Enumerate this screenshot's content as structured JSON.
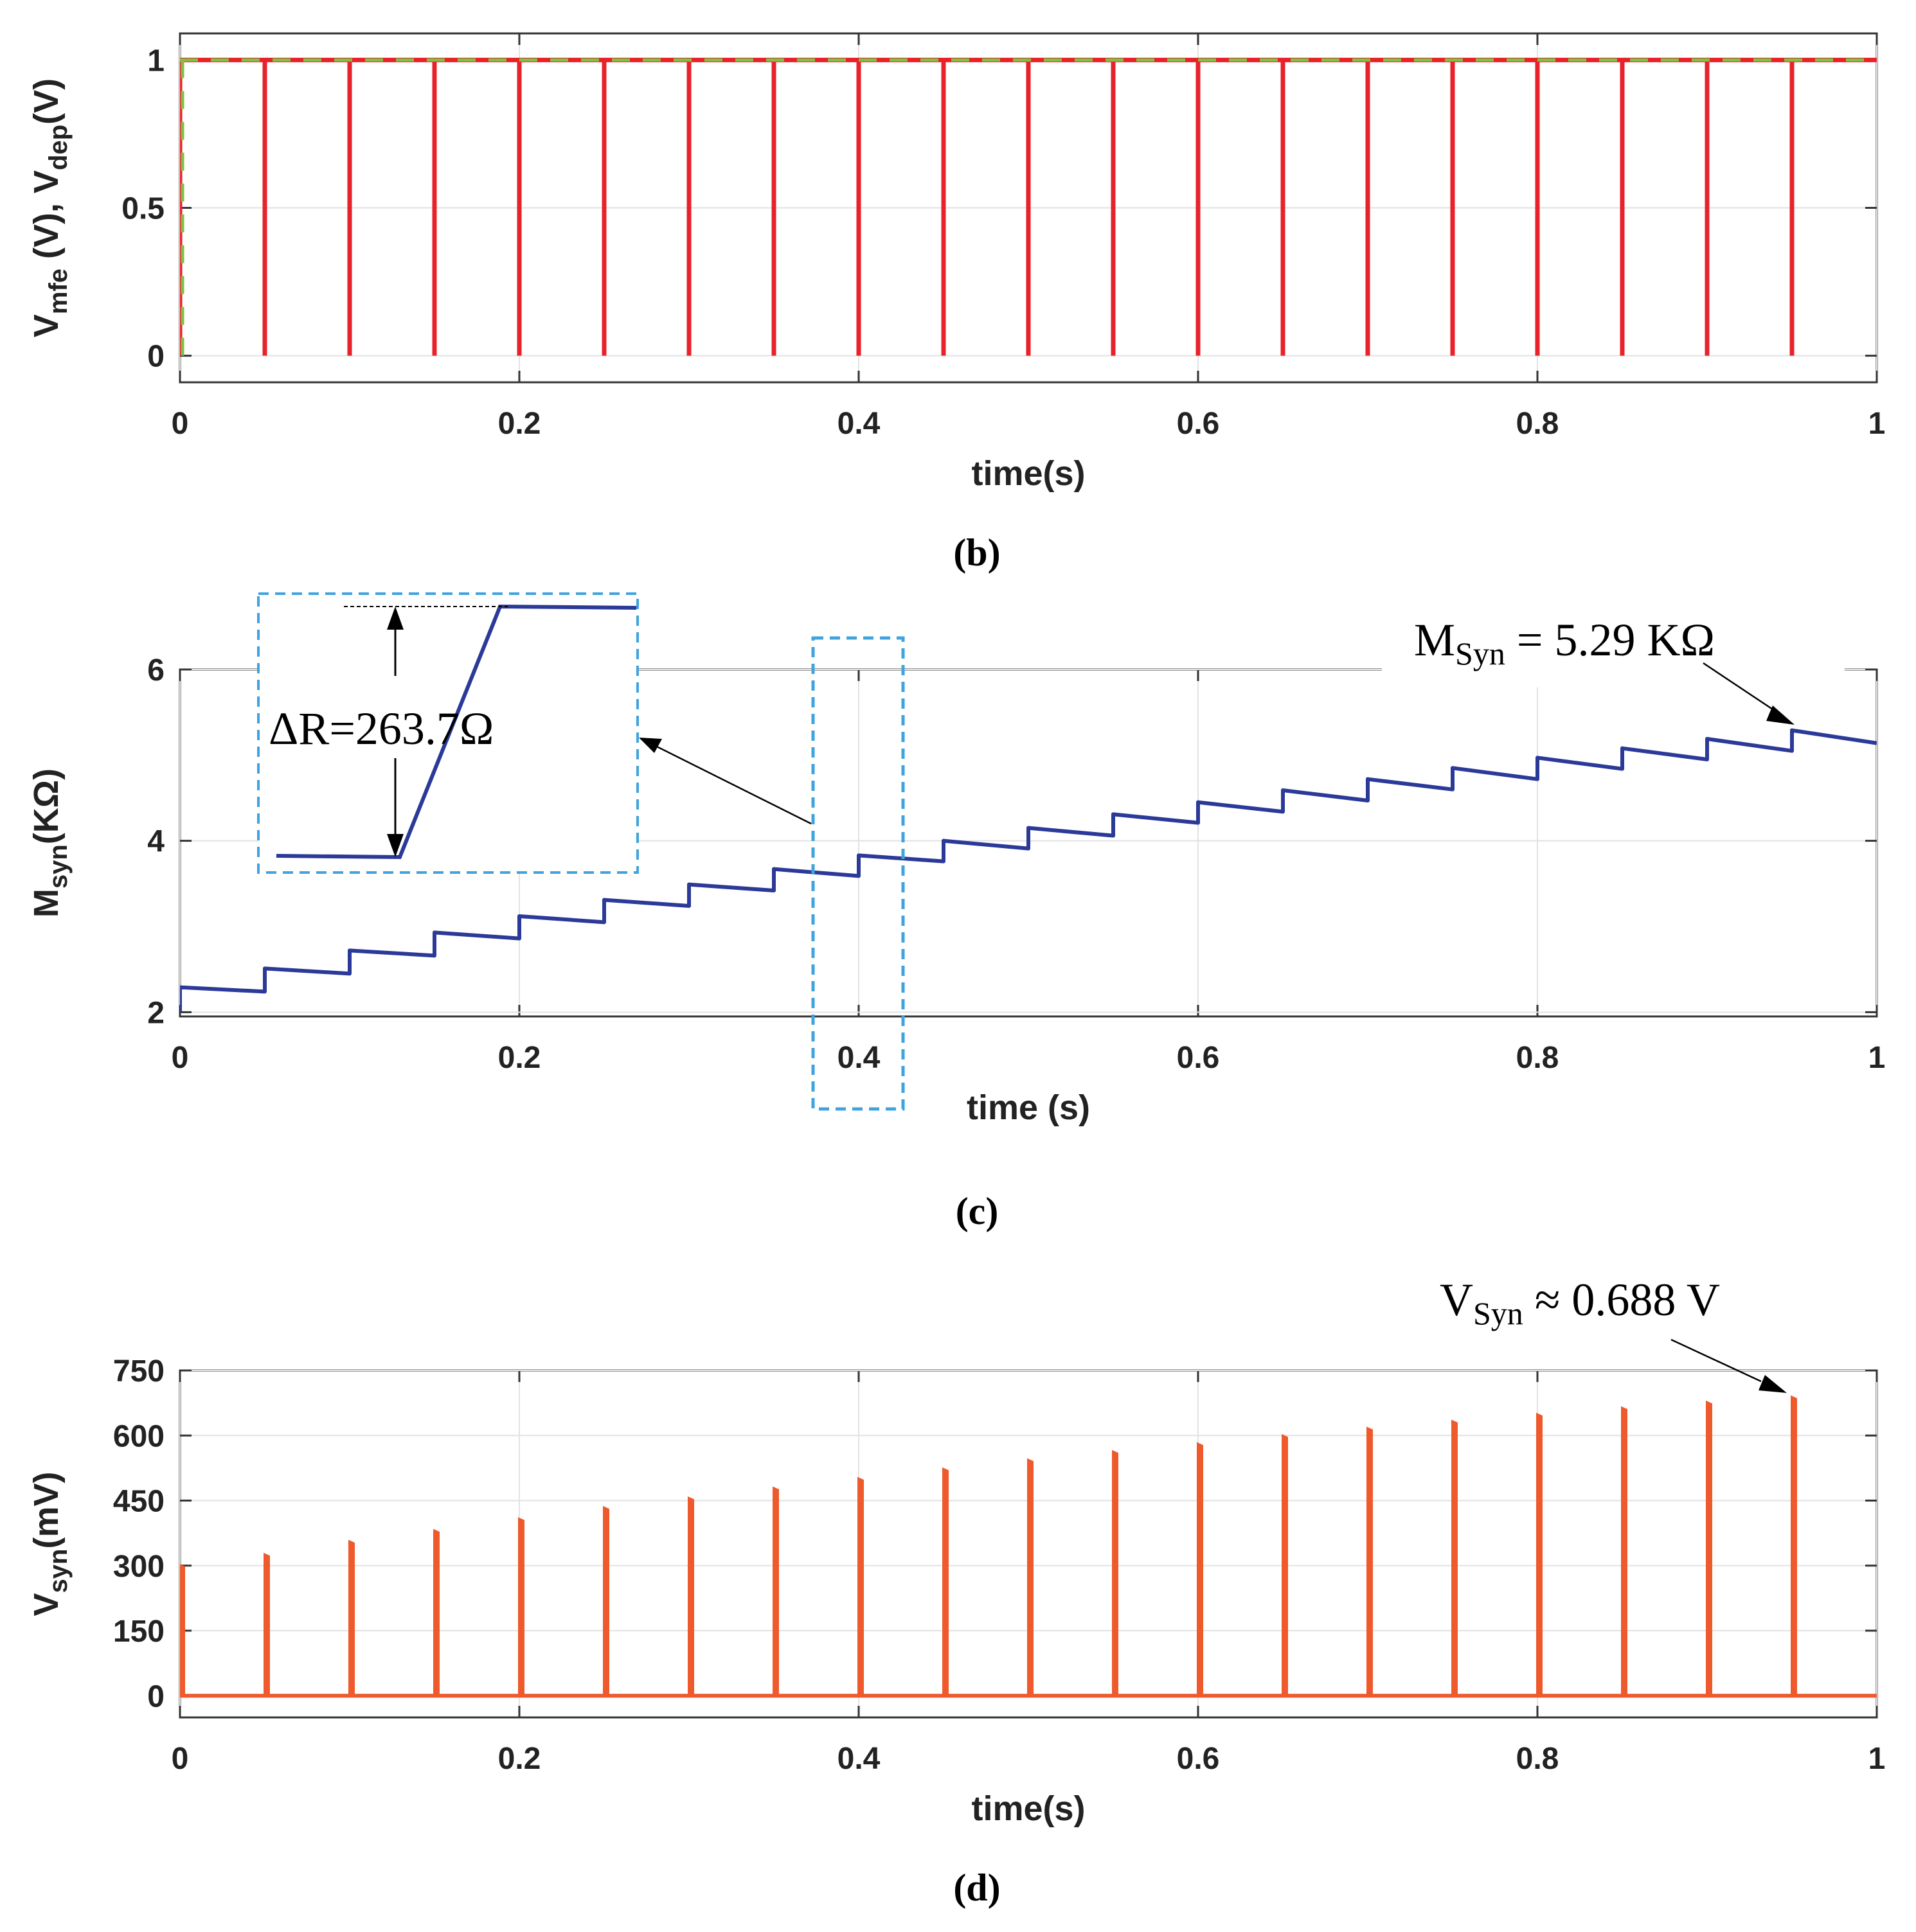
{
  "charts": [
    {
      "id": "b",
      "type": "line",
      "caption": "(b)",
      "xlabel": "time(s)",
      "ylabel_parts": [
        "V",
        "mfe",
        " (V), V",
        "dep",
        "(V)"
      ],
      "xlim": [
        0,
        1
      ],
      "ylim": [
        -0.09,
        1.09
      ],
      "xticks": [
        "0",
        "0.2",
        "0.4",
        "0.6",
        "0.8",
        "1"
      ],
      "yticks": [
        "0",
        "0.5",
        "1"
      ],
      "series": [
        {
          "name": "V_mfe",
          "color": "#e8222a",
          "style": "solid",
          "description": "1 V pulse train with drops to 0 V every 0.05 s",
          "x": [
            0,
            0.05,
            0.1,
            0.15,
            0.2,
            0.25,
            0.3,
            0.35,
            0.4,
            0.45,
            0.5,
            0.55,
            0.6,
            0.65,
            0.7,
            0.75,
            0.8,
            0.85,
            0.9,
            0.95,
            1
          ],
          "high": 1,
          "low": 0
        },
        {
          "name": "V_dep",
          "color": "#7dc242",
          "style": "dashed",
          "x": [
            0,
            1
          ],
          "y": [
            1,
            1
          ]
        }
      ]
    },
    {
      "id": "c",
      "type": "line",
      "caption": "(c)",
      "xlabel": "time (s)",
      "ylabel_parts": [
        "M",
        "syn",
        "(KΩ)"
      ],
      "xlim": [
        0,
        1
      ],
      "ylim": [
        1.95,
        6
      ],
      "xticks": [
        "0",
        "0.2",
        "0.4",
        "0.6",
        "0.8",
        "1"
      ],
      "yticks": [
        "2",
        "4",
        "6"
      ],
      "series": [
        {
          "name": "M_syn",
          "color": "#2b3a98",
          "x": [
            0,
            0.05,
            0.1,
            0.15,
            0.2,
            0.25,
            0.3,
            0.35,
            0.4,
            0.45,
            0.5,
            0.55,
            0.6,
            0.65,
            0.7,
            0.75,
            0.8,
            0.85,
            0.9,
            0.95
          ],
          "start": [
            2.29,
            2.51,
            2.72,
            2.93,
            3.12,
            3.31,
            3.49,
            3.67,
            3.83,
            4.0,
            4.15,
            4.31,
            4.45,
            4.59,
            4.72,
            4.85,
            4.97,
            5.08,
            5.19,
            5.29
          ],
          "end": [
            2.24,
            2.45,
            2.66,
            2.86,
            3.05,
            3.24,
            3.42,
            3.59,
            3.76,
            3.91,
            4.06,
            4.21,
            4.34,
            4.47,
            4.6,
            4.72,
            4.84,
            4.95,
            5.05,
            5.14
          ]
        }
      ],
      "annotations": {
        "final_label_parts": [
          "M",
          "Syn",
          " = 5.29 KΩ"
        ],
        "inset_label": "ΔR=263.7Ω"
      }
    },
    {
      "id": "d",
      "type": "line",
      "caption": "(d)",
      "xlabel": "time(s)",
      "ylabel_parts": [
        "V",
        "syn",
        "(mV)"
      ],
      "xlim": [
        0,
        1
      ],
      "ylim": [
        -50,
        750
      ],
      "xticks": [
        "0",
        "0.2",
        "0.4",
        "0.6",
        "0.8",
        "1"
      ],
      "yticks": [
        "0",
        "150",
        "300",
        "450",
        "600",
        "750"
      ],
      "series": [
        {
          "name": "V_syn",
          "color": "#ee5a2c",
          "x": [
            0,
            0.05,
            0.1,
            0.15,
            0.2,
            0.25,
            0.3,
            0.35,
            0.4,
            0.45,
            0.5,
            0.55,
            0.6,
            0.65,
            0.7,
            0.75,
            0.8,
            0.85,
            0.9,
            0.95
          ],
          "peaks": [
            300,
            325,
            355,
            380,
            407,
            433,
            455,
            478,
            500,
            522,
            543,
            562,
            580,
            599,
            616,
            632,
            648,
            663,
            676,
            688
          ]
        }
      ],
      "annotations": {
        "final_label_parts": [
          "V",
          "Syn",
          " ≈ 0.688 V"
        ]
      }
    }
  ]
}
